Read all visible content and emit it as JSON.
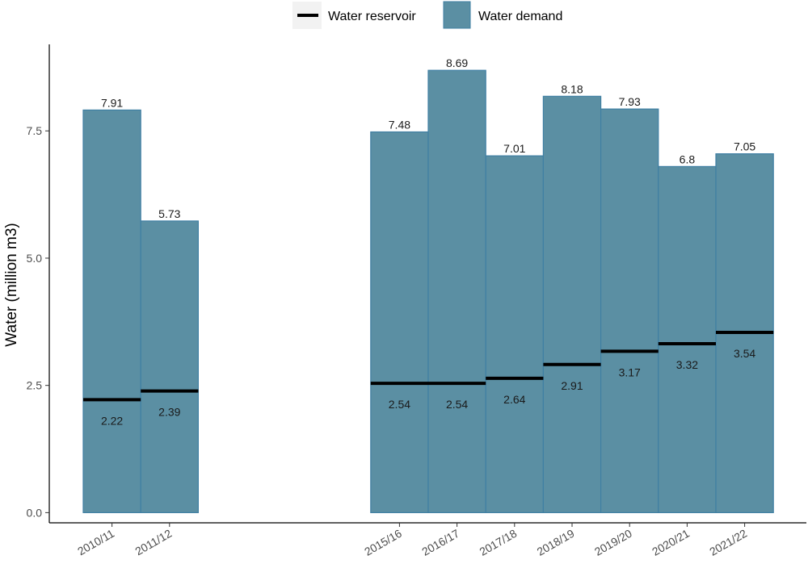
{
  "chart_data": {
    "type": "bar",
    "title": "",
    "xlabel": "",
    "ylabel": "Water (million m3)",
    "ylim": [
      -0.2,
      9.2
    ],
    "yticks": [
      0.0,
      2.5,
      5.0,
      7.5
    ],
    "ytick_labels": [
      "0.0",
      "2.5",
      "5.0",
      "7.5"
    ],
    "grid": false,
    "legend_position": "top",
    "categories": [
      "2010/11",
      "2011/12",
      "2015/16",
      "2016/17",
      "2017/18",
      "2018/19",
      "2019/20",
      "2020/21",
      "2021/22"
    ],
    "series": [
      {
        "name": "Water demand",
        "mark": "bar",
        "color": "#5b8fa3",
        "values": [
          7.91,
          5.73,
          7.48,
          8.69,
          7.01,
          8.18,
          7.93,
          6.8,
          7.05
        ],
        "labels": [
          "7.91",
          "5.73",
          "7.48",
          "8.69",
          "7.01",
          "8.18",
          "7.93",
          "6.8",
          "7.05"
        ]
      },
      {
        "name": "Water reservoir",
        "mark": "segment",
        "color": "#000000",
        "values": [
          2.22,
          2.39,
          2.54,
          2.54,
          2.64,
          2.91,
          3.17,
          3.32,
          3.54
        ],
        "labels": [
          "2.22",
          "2.39",
          "2.54",
          "2.54",
          "2.64",
          "2.91",
          "3.17",
          "3.32",
          "3.54"
        ]
      }
    ]
  },
  "legend": {
    "items": [
      {
        "label": "Water reservoir",
        "symbol": "line",
        "color": "#000000"
      },
      {
        "label": "Water demand",
        "symbol": "rect",
        "color": "#5b8fa3"
      }
    ]
  }
}
